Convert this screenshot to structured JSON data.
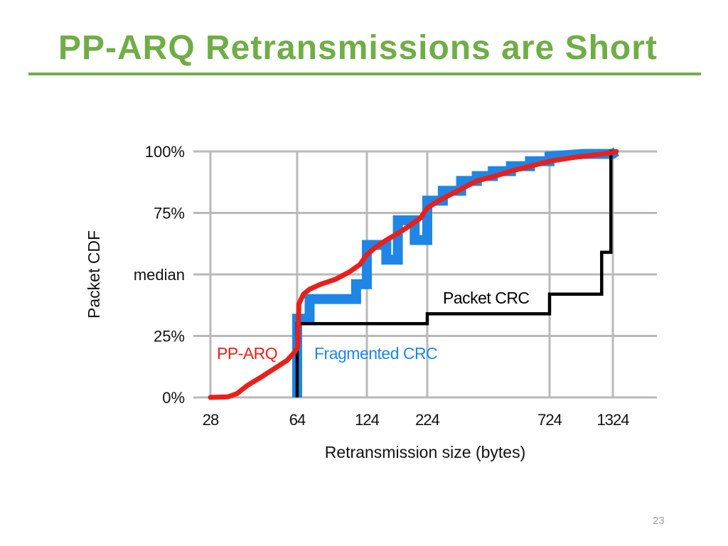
{
  "slide": {
    "title": "PP-ARQ Retransmissions are Short",
    "page_number": "23"
  },
  "colors": {
    "title": "#70ad47",
    "grid": "#b9b9b9",
    "pp_arq": "#e8201c",
    "fragmented_crc": "#1f86e5",
    "packet_crc": "#000000"
  },
  "chart_data": {
    "type": "line",
    "title": "",
    "xlabel": "Retransmission size (bytes)",
    "ylabel": "Packet CDF",
    "x_ticks": [
      28,
      64,
      124,
      224,
      724,
      1324
    ],
    "x_tick_labels": [
      "28",
      "64",
      "124",
      "224",
      "724",
      "1324"
    ],
    "x_scale": "log",
    "xlim": [
      28,
      1324
    ],
    "ylim": [
      0,
      100
    ],
    "y_ticks": [
      0,
      25,
      50,
      75,
      100
    ],
    "y_tick_labels": [
      "0%",
      "25%",
      "median",
      "75%",
      "100%"
    ],
    "grid": true,
    "series": [
      {
        "name": "Fragmented CRC",
        "color": "#1f86e5",
        "style": "step",
        "x": [
          64,
          64,
          72,
          72,
          112,
          112,
          124,
          124,
          150,
          150,
          168,
          168,
          198,
          198,
          224,
          224,
          260,
          260,
          310,
          310,
          360,
          360,
          420,
          420,
          500,
          500,
          600,
          600,
          724,
          724,
          1000,
          1324,
          1370
        ],
        "y": [
          0,
          32,
          32,
          40,
          40,
          46,
          46,
          62,
          62,
          56,
          56,
          72,
          72,
          64,
          64,
          80,
          80,
          84,
          84,
          88,
          88,
          90,
          90,
          92,
          92,
          94,
          94,
          96,
          96,
          98,
          99,
          99,
          100
        ]
      },
      {
        "name": "PP-ARQ",
        "color": "#e8201c",
        "style": "line",
        "x": [
          28,
          33,
          36,
          40,
          45,
          52,
          58,
          62,
          64,
          64.5,
          65,
          68,
          72,
          80,
          92,
          105,
          116,
          120,
          124,
          135,
          150,
          170,
          190,
          210,
          224,
          250,
          300,
          360,
          430,
          500,
          600,
          724,
          900,
          1100,
          1324,
          1370
        ],
        "y": [
          0,
          0.2,
          1.5,
          5,
          8,
          12,
          15,
          18,
          20,
          22,
          38,
          42,
          44,
          46,
          48,
          51,
          54,
          56,
          58,
          61,
          64,
          67,
          70,
          73,
          77,
          80,
          84,
          88,
          90,
          92,
          94,
          96,
          97.5,
          98.5,
          99.5,
          100
        ]
      },
      {
        "name": "Packet CRC",
        "color": "#000000",
        "style": "step",
        "x": [
          64,
          64,
          224,
          224,
          724,
          724,
          1190,
          1190,
          1300,
          1300,
          1370,
          1370
        ],
        "y": [
          0,
          30,
          30,
          34,
          34,
          42,
          42,
          59,
          59,
          100,
          100,
          100
        ]
      }
    ],
    "annotations": [
      {
        "text": "PP-ARQ",
        "series": "PP-ARQ"
      },
      {
        "text": "Fragmented CRC",
        "series": "Fragmented CRC"
      },
      {
        "text": "Packet CRC",
        "series": "Packet CRC"
      }
    ]
  }
}
